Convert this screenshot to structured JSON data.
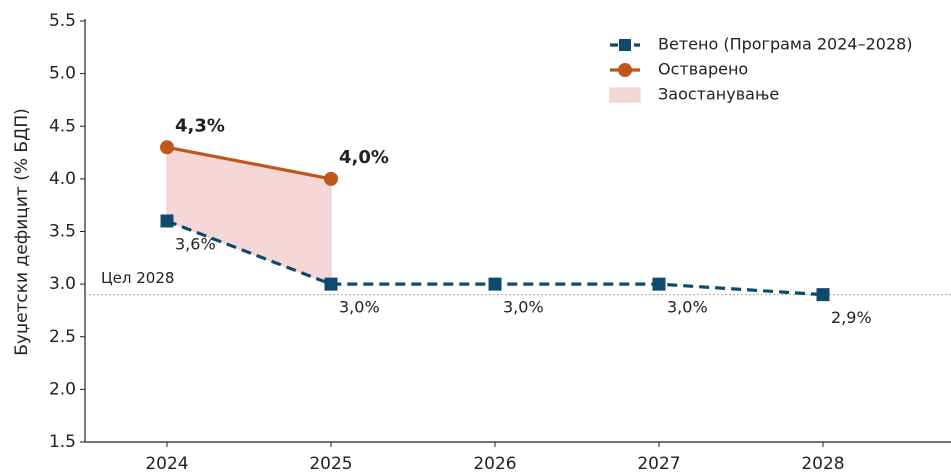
{
  "chart_data": {
    "type": "line",
    "y_label": "Буџетски дефицит (% БДП)",
    "categories": [
      "2024",
      "2025",
      "2026",
      "2027",
      "2028"
    ],
    "series": [
      {
        "name": "Ветено (Програма 2024–2028)",
        "color": "#0d4a6e",
        "dashed": true,
        "marker": "square",
        "values": [
          3.6,
          3.0,
          3.0,
          3.0,
          2.9
        ],
        "value_labels": [
          "3,6%",
          "3,0%",
          "3,0%",
          "3,0%",
          "2,9%"
        ]
      },
      {
        "name": "Остварено",
        "color": "#c0571a",
        "dashed": false,
        "marker": "circle",
        "values": [
          4.3,
          4.0,
          null,
          null,
          null
        ],
        "value_labels": [
          "4,3%",
          "4,0%",
          null,
          null,
          null
        ]
      }
    ],
    "fill": {
      "name": "Заостанување",
      "color": "#f2c9c9"
    },
    "reference_line": {
      "value": 2.9,
      "label": "Цел 2028",
      "color": "#aaaaaa"
    },
    "ylim": [
      1.5,
      5.5
    ],
    "yticks": [
      1.5,
      {
        "value": 2,
        "label": "2.0"
      },
      2.5,
      {
        "value": 3,
        "label": "3.0"
      },
      3.5,
      {
        "value": 4,
        "label": "4.0"
      },
      4.5,
      {
        "value": 5,
        "label": "5.0"
      },
      5.5
    ],
    "legend": "upper right",
    "grid": false
  }
}
